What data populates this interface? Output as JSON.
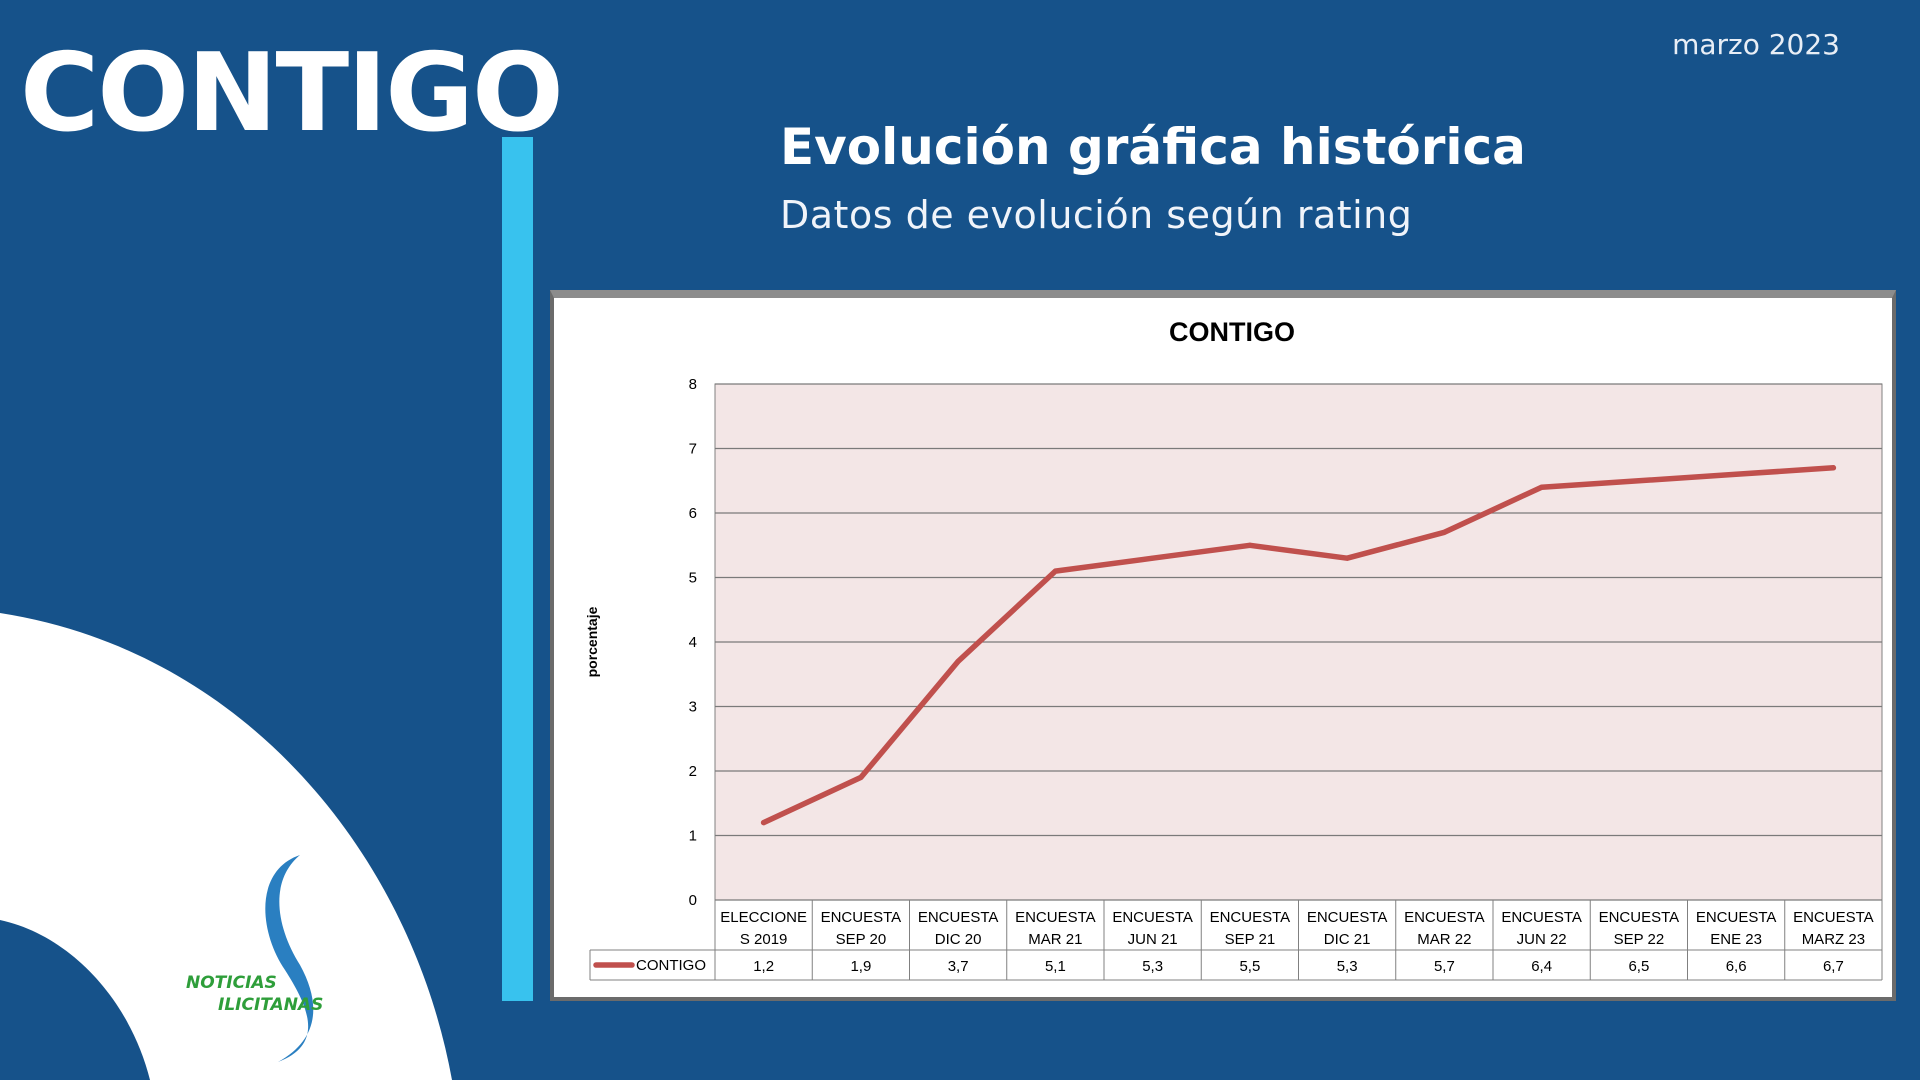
{
  "header": {
    "brand": "CONTIGO",
    "date": "marzo 2023",
    "title": "Evolución gráfica histórica",
    "subtitle": "Datos de evolución según rating"
  },
  "logo": {
    "line1": "NOTICIAS",
    "line2": "ILICITANAS"
  },
  "colors": {
    "background": "#16528a",
    "accent_bar": "#38c2ee",
    "series_line": "#c0504d",
    "plot_area": "#f3e6e6"
  },
  "chart_data": {
    "type": "line",
    "title": "CONTIGO",
    "ylabel": "porcentaje",
    "xlabel": "",
    "ylim": [
      0,
      8
    ],
    "yticks": [
      0,
      1,
      2,
      3,
      4,
      5,
      6,
      7,
      8
    ],
    "grid": true,
    "legend": "data-table-row",
    "categories": [
      [
        "ELECCIONE",
        "S 2019"
      ],
      [
        "ENCUESTA",
        "SEP 20"
      ],
      [
        "ENCUESTA",
        "DIC 20"
      ],
      [
        "ENCUESTA",
        "MAR 21"
      ],
      [
        "ENCUESTA",
        "JUN 21"
      ],
      [
        "ENCUESTA",
        "SEP 21"
      ],
      [
        "ENCUESTA",
        "DIC 21"
      ],
      [
        "ENCUESTA",
        "MAR 22"
      ],
      [
        "ENCUESTA",
        "JUN 22"
      ],
      [
        "ENCUESTA",
        "SEP 22"
      ],
      [
        "ENCUESTA",
        "ENE 23"
      ],
      [
        "ENCUESTA",
        "MARZ 23"
      ]
    ],
    "series": [
      {
        "name": "CONTIGO",
        "values": [
          1.2,
          1.9,
          3.7,
          5.1,
          5.3,
          5.5,
          5.3,
          5.7,
          6.4,
          6.5,
          6.6,
          6.7
        ],
        "labels": [
          "1,2",
          "1,9",
          "3,7",
          "5,1",
          "5,3",
          "5,5",
          "5,3",
          "5,7",
          "6,4",
          "6,5",
          "6,6",
          "6,7"
        ]
      }
    ]
  }
}
